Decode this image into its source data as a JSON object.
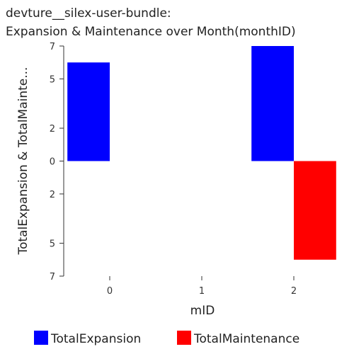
{
  "chart_data": {
    "type": "bar",
    "title_lines": [
      "devture__silex-user-bundle:",
      "Expansion & Maintenance over Month(monthID)"
    ],
    "xlabel": "mID",
    "ylabel": "TotalExpansion & TotalMainte...",
    "categories": [
      "0",
      "1",
      "2"
    ],
    "ylim": [
      -7,
      7
    ],
    "y_tick_values": [
      7,
      5,
      2,
      0,
      -2,
      -5,
      -7
    ],
    "y_tick_labels": [
      "7",
      "5",
      "2",
      "0",
      "2",
      "5",
      "7"
    ],
    "series": [
      {
        "name": "TotalExpansion",
        "color": "#0000ff",
        "values": [
          6,
          0,
          7
        ]
      },
      {
        "name": "TotalMaintenance",
        "color": "#ff0000",
        "values": [
          0,
          0,
          -6
        ]
      }
    ],
    "legend_position": "bottom",
    "grid": false
  }
}
